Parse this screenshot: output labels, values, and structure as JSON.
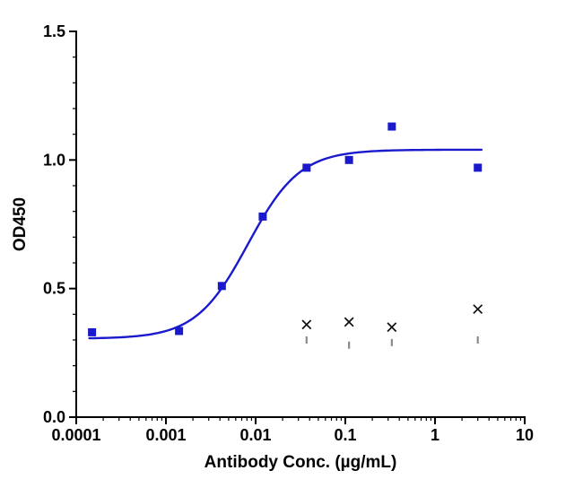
{
  "chart_data": {
    "type": "scatter",
    "title": "",
    "xlabel": "Antibody Conc. (µg/mL)",
    "ylabel": "OD450",
    "x_scale": "log10",
    "xlim": [
      0.0001,
      10
    ],
    "ylim": [
      0.0,
      1.5
    ],
    "x_major_ticks": [
      0.0001,
      0.001,
      0.01,
      0.1,
      1,
      10
    ],
    "x_tick_labels": [
      "0.0001",
      "0.001",
      "0.01",
      "0.1",
      "1",
      "10"
    ],
    "y_major_ticks": [
      0.0,
      0.5,
      1.0,
      1.5
    ],
    "y_tick_labels": [
      "0.0",
      "0.5",
      "1.0",
      "1.5"
    ],
    "y_minor_step": 0.1,
    "grid": false,
    "legend": "none",
    "series": [
      {
        "name": "antibody-squares",
        "marker": "square",
        "color": "#1a1acc",
        "points": [
          [
            0.00015,
            0.33
          ],
          [
            0.0014,
            0.335
          ],
          [
            0.0042,
            0.51
          ],
          [
            0.012,
            0.78
          ],
          [
            0.037,
            0.97
          ],
          [
            0.11,
            1.0
          ],
          [
            0.33,
            1.13
          ],
          [
            3,
            0.97
          ]
        ]
      },
      {
        "name": "control-x",
        "marker": "x",
        "color": "#111111",
        "points": [
          [
            0.037,
            0.36
          ],
          [
            0.11,
            0.37
          ],
          [
            0.33,
            0.35
          ],
          [
            3,
            0.42
          ]
        ]
      },
      {
        "name": "control-dash",
        "marker": "vline",
        "color": "#8a8a8a",
        "points": [
          [
            0.037,
            0.3
          ],
          [
            0.11,
            0.28
          ],
          [
            0.33,
            0.29
          ],
          [
            3,
            0.3
          ]
        ]
      }
    ],
    "fit_curve": {
      "model": "4PL sigmoidal",
      "bottom": 0.305,
      "top": 1.04,
      "ec50": 0.0082,
      "hill": 1.5,
      "x_start": 0.00014,
      "x_end": 3.3,
      "color": "#1a1acc"
    }
  }
}
